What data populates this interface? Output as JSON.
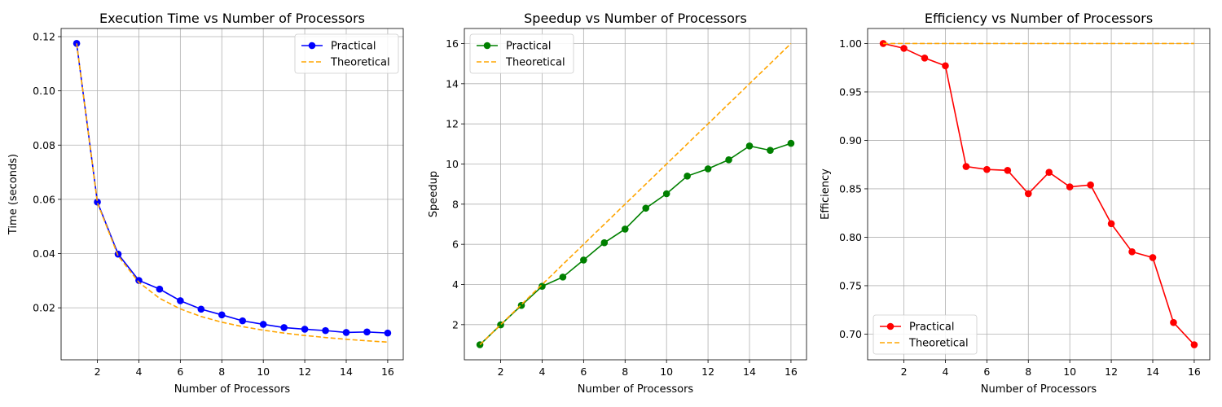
{
  "chart_data": [
    {
      "type": "line",
      "title": "Execution Time vs Number of Processors",
      "xlabel": "Number of Processors",
      "ylabel": "Time (seconds)",
      "x": [
        1,
        2,
        3,
        4,
        5,
        6,
        7,
        8,
        9,
        10,
        11,
        12,
        13,
        14,
        15,
        16
      ],
      "xlim": [
        0.25,
        16.75
      ],
      "ylim": [
        0.00083,
        0.123
      ],
      "xticks": [
        2,
        4,
        6,
        8,
        10,
        12,
        14,
        16
      ],
      "yticks": [
        0.02,
        0.04,
        0.06,
        0.08,
        0.1,
        0.12
      ],
      "ytick_labels": [
        "0.02",
        "0.04",
        "0.06",
        "0.08",
        "0.10",
        "0.12"
      ],
      "grid": true,
      "legend_position": "top-right",
      "series": [
        {
          "name": "Practical",
          "color": "#0000ff",
          "style": "solid",
          "marker": "circle",
          "values": [
            0.1175,
            0.059,
            0.0398,
            0.0301,
            0.0269,
            0.0226,
            0.0195,
            0.0174,
            0.0152,
            0.0139,
            0.0127,
            0.0121,
            0.0116,
            0.0109,
            0.0111,
            0.0107
          ]
        },
        {
          "name": "Theoretical",
          "color": "#ffa500",
          "style": "dashed",
          "marker": "none",
          "values": [
            0.1175,
            0.05875,
            0.03917,
            0.02938,
            0.0235,
            0.01958,
            0.01679,
            0.01469,
            0.01306,
            0.01175,
            0.01068,
            0.00979,
            0.00904,
            0.00839,
            0.00783,
            0.00734
          ]
        }
      ]
    },
    {
      "type": "line",
      "title": "Speedup vs Number of Processors",
      "xlabel": "Number of Processors",
      "ylabel": "Speedup",
      "x": [
        1,
        2,
        3,
        4,
        5,
        6,
        7,
        8,
        9,
        10,
        11,
        12,
        13,
        14,
        15,
        16
      ],
      "xlim": [
        0.25,
        16.75
      ],
      "ylim": [
        0.25,
        16.75
      ],
      "xticks": [
        2,
        4,
        6,
        8,
        10,
        12,
        14,
        16
      ],
      "yticks": [
        2,
        4,
        6,
        8,
        10,
        12,
        14,
        16
      ],
      "ytick_labels": [
        "2",
        "4",
        "6",
        "8",
        "10",
        "12",
        "14",
        "16"
      ],
      "grid": true,
      "legend_position": "top-left",
      "series": [
        {
          "name": "Practical",
          "color": "#008000",
          "style": "solid",
          "marker": "circle",
          "values": [
            1.0,
            1.99,
            2.96,
            3.91,
            4.37,
            5.22,
            6.08,
            6.76,
            7.8,
            8.52,
            9.4,
            9.76,
            10.21,
            10.9,
            10.68,
            11.03
          ]
        },
        {
          "name": "Theoretical",
          "color": "#ffa500",
          "style": "dashed",
          "marker": "none",
          "values": [
            1,
            2,
            3,
            4,
            5,
            6,
            7,
            8,
            9,
            10,
            11,
            12,
            13,
            14,
            15,
            16
          ]
        }
      ]
    },
    {
      "type": "line",
      "title": "Efficiency vs Number of Processors",
      "xlabel": "Number of Processors",
      "ylabel": "Efficiency",
      "x": [
        1,
        2,
        3,
        4,
        5,
        6,
        7,
        8,
        9,
        10,
        11,
        12,
        13,
        14,
        15,
        16
      ],
      "xlim": [
        0.25,
        16.75
      ],
      "ylim": [
        0.6735,
        1.0155
      ],
      "xticks": [
        2,
        4,
        6,
        8,
        10,
        12,
        14,
        16
      ],
      "yticks": [
        0.7,
        0.75,
        0.8,
        0.85,
        0.9,
        0.95,
        1.0
      ],
      "ytick_labels": [
        "0.70",
        "0.75",
        "0.80",
        "0.85",
        "0.90",
        "0.95",
        "1.00"
      ],
      "grid": true,
      "legend_position": "bottom-left",
      "series": [
        {
          "name": "Practical",
          "color": "#ff0000",
          "style": "solid",
          "marker": "circle",
          "values": [
            1.0,
            0.995,
            0.985,
            0.977,
            0.873,
            0.87,
            0.869,
            0.845,
            0.867,
            0.852,
            0.854,
            0.814,
            0.785,
            0.779,
            0.712,
            0.689
          ]
        },
        {
          "name": "Theoretical",
          "color": "#ffa500",
          "style": "dashed",
          "marker": "none",
          "values": [
            1,
            1,
            1,
            1,
            1,
            1,
            1,
            1,
            1,
            1,
            1,
            1,
            1,
            1,
            1,
            1
          ]
        }
      ]
    }
  ]
}
